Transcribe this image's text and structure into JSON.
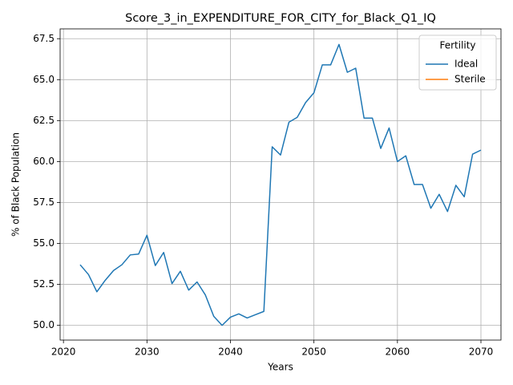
{
  "chart_data": {
    "type": "line",
    "title": "Score_3_in_EXPENDITURE_FOR_CITY_for_Black_Q1_IQ",
    "xlabel": "Years",
    "ylabel": "% of Black Population",
    "x": [
      2022,
      2023,
      2024,
      2025,
      2026,
      2027,
      2028,
      2029,
      2030,
      2031,
      2032,
      2033,
      2034,
      2035,
      2036,
      2037,
      2038,
      2039,
      2040,
      2041,
      2042,
      2043,
      2044,
      2045,
      2046,
      2047,
      2048,
      2049,
      2050,
      2051,
      2052,
      2053,
      2054,
      2055,
      2056,
      2057,
      2058,
      2059,
      2060,
      2061,
      2062,
      2063,
      2064,
      2065,
      2066,
      2067,
      2068,
      2069,
      2070
    ],
    "series": [
      {
        "name": "Ideal",
        "color": "#1f77b4",
        "values": [
          53.7,
          53.1,
          52.05,
          52.75,
          53.35,
          53.7,
          54.3,
          54.35,
          55.5,
          53.65,
          54.45,
          52.55,
          53.3,
          52.15,
          52.65,
          51.85,
          50.55,
          50.0,
          50.5,
          50.7,
          50.45,
          50.65,
          50.85,
          60.9,
          60.4,
          62.4,
          62.7,
          63.6,
          64.2,
          65.9,
          65.9,
          67.15,
          65.45,
          65.7,
          62.65,
          62.65,
          60.8,
          62.05,
          60.0,
          60.35,
          58.6,
          58.6,
          57.15,
          58.0,
          56.95,
          58.55,
          57.85,
          60.45,
          60.7
        ]
      },
      {
        "name": "Sterile",
        "color": "#ff7f0e",
        "values": [
          null,
          null,
          null,
          null,
          null,
          null,
          null,
          null,
          null,
          null,
          null,
          null,
          null,
          null,
          null,
          null,
          null,
          null,
          null,
          null,
          null,
          null,
          null,
          null,
          null,
          null,
          null,
          null,
          null,
          null,
          null,
          null,
          null,
          null,
          null,
          null,
          null,
          null,
          null,
          null,
          null,
          null,
          null,
          null,
          null,
          null,
          null,
          null,
          null
        ]
      }
    ],
    "xlim": [
      2019.6,
      2072.4
    ],
    "xticks": [
      2020,
      2030,
      2040,
      2050,
      2060,
      2070
    ],
    "ylim": [
      49.1,
      68.1
    ],
    "yticks": [
      {
        "value": 50,
        "label": "50.0"
      },
      52.5,
      {
        "value": 55,
        "label": "55.0"
      },
      57.5,
      {
        "value": 60,
        "label": "60.0"
      },
      62.5,
      {
        "value": 65,
        "label": "65.0"
      },
      67.5
    ],
    "grid": true,
    "legend_title": "Fertility",
    "legend_position": "upper right"
  }
}
